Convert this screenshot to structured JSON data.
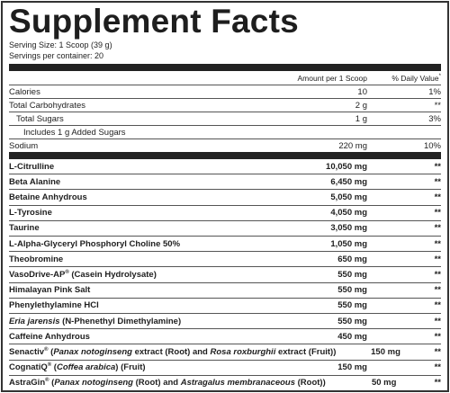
{
  "header": {
    "title": "Supplement Facts",
    "serving_size": "Serving Size: 1 Scoop (39 g)",
    "servings_per_container": "Servings per container: 20"
  },
  "table": {
    "columns": {
      "amount": [
        "Amount per 1 Scoop"
      ],
      "daily_value": [
        "% Daily Value",
        {
          "text": "*",
          "style": "sup"
        }
      ]
    },
    "nutrients": [
      {
        "name": [
          "Calories"
        ],
        "amount": "10",
        "daily_value": "1%",
        "indent": 0
      },
      {
        "name": [
          "Total Carbohydrates"
        ],
        "amount": "2 g",
        "daily_value": "**",
        "indent": 0
      },
      {
        "name": [
          "Total Sugars"
        ],
        "amount": "1 g",
        "daily_value": "3%",
        "indent": 1
      },
      {
        "name": [
          "Includes 1 g Added Sugars"
        ],
        "indent": 2
      },
      {
        "name": [
          "Sodium"
        ],
        "amount": "220 mg",
        "daily_value": "10%",
        "indent": 0
      }
    ],
    "ingredients": [
      {
        "name": [
          "L-Citrulline"
        ],
        "amount": "10,050 mg",
        "daily_value": "**"
      },
      {
        "name": [
          "Beta Alanine"
        ],
        "amount": "6,450 mg",
        "daily_value": "**"
      },
      {
        "name": [
          "Betaine Anhydrous"
        ],
        "amount": "5,050 mg",
        "daily_value": "**"
      },
      {
        "name": [
          "L-Tyrosine"
        ],
        "amount": "4,050 mg",
        "daily_value": "**"
      },
      {
        "name": [
          "Taurine"
        ],
        "amount": "3,050 mg",
        "daily_value": "**"
      },
      {
        "name": [
          "L-Alpha-Glyceryl Phosphoryl Choline 50%"
        ],
        "amount": "1,050 mg",
        "daily_value": "**"
      },
      {
        "name": [
          "Theobromine"
        ],
        "amount": "650 mg",
        "daily_value": "**"
      },
      {
        "name": [
          "VasoDrive-AP",
          {
            "text": "®",
            "style": "sup"
          },
          " (Casein Hydrolysate)"
        ],
        "amount": "550 mg",
        "daily_value": "**"
      },
      {
        "name": [
          "Himalayan Pink Salt"
        ],
        "amount": "550 mg",
        "daily_value": "**"
      },
      {
        "name": [
          "Phenylethylamine HCl"
        ],
        "amount": "550 mg",
        "daily_value": "**"
      },
      {
        "name": [
          {
            "text": "Eria jarensis",
            "style": "italic"
          },
          " (N-Phenethyl Dimethylamine)"
        ],
        "amount": "550 mg",
        "daily_value": "**"
      },
      {
        "name": [
          "Caffeine Anhydrous"
        ],
        "amount": "450 mg",
        "daily_value": "**"
      },
      {
        "name": [
          "Senactiv",
          {
            "text": "®",
            "style": "sup"
          },
          " (",
          {
            "text": "Panax notoginseng",
            "style": "italic"
          },
          " extract (Root) and ",
          {
            "text": "Rosa roxburghii",
            "style": "italic"
          },
          " extract (Fruit))"
        ],
        "amount": "150 mg",
        "daily_value": "**"
      },
      {
        "name": [
          "CognatiQ",
          {
            "text": "®",
            "style": "sup"
          },
          " (",
          {
            "text": "Coffea arabica",
            "style": "italic"
          },
          ") (Fruit)"
        ],
        "amount": "150 mg",
        "daily_value": "**"
      },
      {
        "name": [
          "AstraGin",
          {
            "text": "®",
            "style": "sup"
          },
          " (",
          {
            "text": "Panax notoginseng",
            "style": "italic"
          },
          " (Root) and ",
          {
            "text": "Astragalus membranaceous",
            "style": "italic"
          },
          " (Root))"
        ],
        "amount": "50 mg",
        "daily_value": "**"
      }
    ]
  }
}
